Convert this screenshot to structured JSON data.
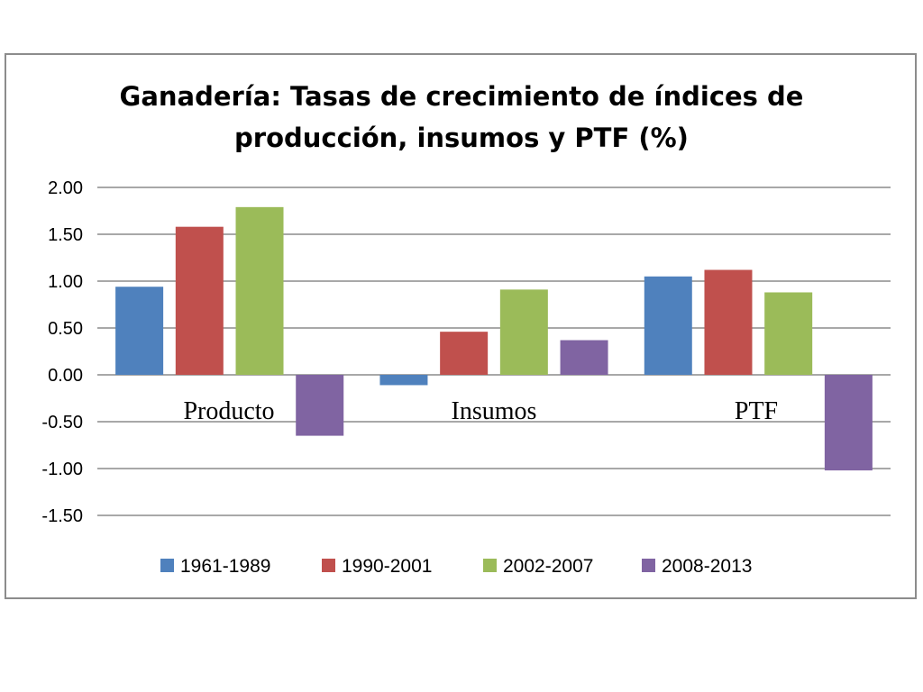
{
  "chart_data": {
    "type": "bar",
    "title_lines": [
      "Ganadería: Tasas de crecimiento de índices de",
      "producción, insumos y PTF (%)"
    ],
    "categories": [
      "Producto",
      "Insumos",
      "PTF"
    ],
    "series": [
      {
        "name": "1961-1989",
        "color": "#4F81BD",
        "values": [
          0.94,
          -0.11,
          1.05
        ]
      },
      {
        "name": "1990-2001",
        "color": "#C0504D",
        "values": [
          1.58,
          0.46,
          1.12
        ]
      },
      {
        "name": "2002-2007",
        "color": "#9BBB59",
        "values": [
          1.79,
          0.91,
          0.88
        ]
      },
      {
        "name": "2008-2013",
        "color": "#8064A2",
        "values": [
          -0.65,
          0.37,
          -1.02
        ]
      }
    ],
    "ylim": [
      -1.5,
      2.0
    ],
    "yticks": [
      "2.00",
      "1.50",
      "1.00",
      "0.50",
      "0.00",
      "-0.50",
      "-1.00",
      "-1.50"
    ],
    "ytick_values": [
      2.0,
      1.5,
      1.0,
      0.5,
      0.0,
      -0.5,
      -1.0,
      -1.5
    ],
    "grid": true,
    "legend_position": "bottom"
  }
}
